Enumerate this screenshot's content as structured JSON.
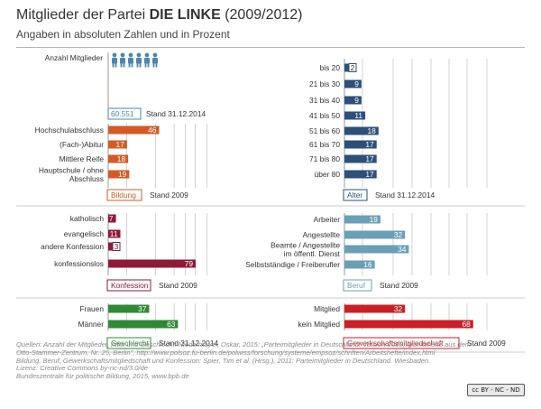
{
  "title_prefix": "Mitglieder der Partei ",
  "title_party": "DIE LINKE",
  "title_years": " (2009/2012)",
  "subtitle": "Angaben in absoluten Zahlen und in Prozent",
  "colors": {
    "bildung": "#d35a24",
    "konfession": "#8f1a36",
    "geschlecht": "#2f8a35",
    "alter": "#2d4f78",
    "beruf": "#6b9fb5",
    "gewerkschaft": "#c92027",
    "figure": "#4e85a8",
    "text": "#333333",
    "grid": "#c8c8c8"
  },
  "chart_data": [
    {
      "id": "mitglieder",
      "type": "table",
      "label": "Anzahl Mitglieder",
      "value_text": "60.551",
      "stand": "Stand 31.12.2014",
      "icon": "member-figures-icon"
    },
    {
      "id": "bildung",
      "type": "bar",
      "title": "Bildung",
      "stand": "Stand 2009",
      "unit": "%",
      "categories": [
        "Hochschulabschluss",
        "(Fach-)Abitur",
        "Mittlere Reife",
        "Hauptschule / ohne Abschluss"
      ],
      "values": [
        46,
        17,
        18,
        19
      ],
      "xlim": [
        0,
        100
      ]
    },
    {
      "id": "konfession",
      "type": "bar",
      "title": "Konfession",
      "stand": "Stand 2009",
      "unit": "%",
      "categories": [
        "katholisch",
        "evangelisch",
        "andere Konfession",
        "konfessionslos"
      ],
      "values": [
        7,
        11,
        3,
        79
      ],
      "xlim": [
        0,
        100
      ]
    },
    {
      "id": "geschlecht",
      "type": "bar",
      "title": "Geschlecht",
      "stand": "Stand 31.12.2014",
      "unit": "%",
      "categories": [
        "Frauen",
        "Männer"
      ],
      "values": [
        37,
        63
      ],
      "xlim": [
        0,
        100
      ]
    },
    {
      "id": "alter",
      "type": "bar",
      "title": "Alter",
      "stand": "Stand 31.12.2014",
      "unit": "%",
      "categories": [
        "bis 20",
        "21 bis 30",
        "31 bis 40",
        "41 bis 50",
        "51 bis 60",
        "61 bis 70",
        "71 bis 80",
        "über 80"
      ],
      "values": [
        2,
        9,
        9,
        11,
        18,
        17,
        17,
        17
      ],
      "xlim": [
        0,
        100
      ]
    },
    {
      "id": "beruf",
      "type": "bar",
      "title": "Beruf",
      "stand": "Stand 2009",
      "unit": "%",
      "categories": [
        "Arbeiter",
        "Angestellte",
        "Beamte / Angestellte im öffentl. Dienst",
        "Selbstständige / Freiberufler"
      ],
      "values": [
        19,
        32,
        34,
        16
      ],
      "xlim": [
        0,
        100
      ]
    },
    {
      "id": "gewerkschaft",
      "type": "bar",
      "title": "Gewerkschaftsmitgliedschaft",
      "stand": "Stand 2009",
      "unit": "%",
      "categories": [
        "Mitglied",
        "kein Mitglied"
      ],
      "values": [
        32,
        68
      ],
      "xlim": [
        0,
        100
      ]
    }
  ],
  "footer": {
    "quellen": [
      "Quellen: Anzahl der Mitglieder, Alter und Geschlecht: Niedermayer, Oskar, 2015: „Parteimitglieder in Deutschland: Version 2015, Arbeitshefte aus dem",
      "Otto-Stammer-Zentrum, Nr. 25, Berlin\", http://www.polsoz.fu-berlin.de/polwiss/forschung/systeme/empsoz/schriften/Arbeitshefte/index.html",
      "Bildung, Beruf, Gewerkschaftsmitgliedschaft und Konfession: Spier, Tim et al. (Hrsg.), 2011: Parteimitglieder in Deutschland. Wiesbaden."
    ],
    "lizenz": "Lizenz: Creative Commons by-nc-nd/3.0/de",
    "publisher": "Bundeszentrale für politische Bildung, 2015, www.bpb.de",
    "license_badge": "cc BY - NC - ND"
  }
}
